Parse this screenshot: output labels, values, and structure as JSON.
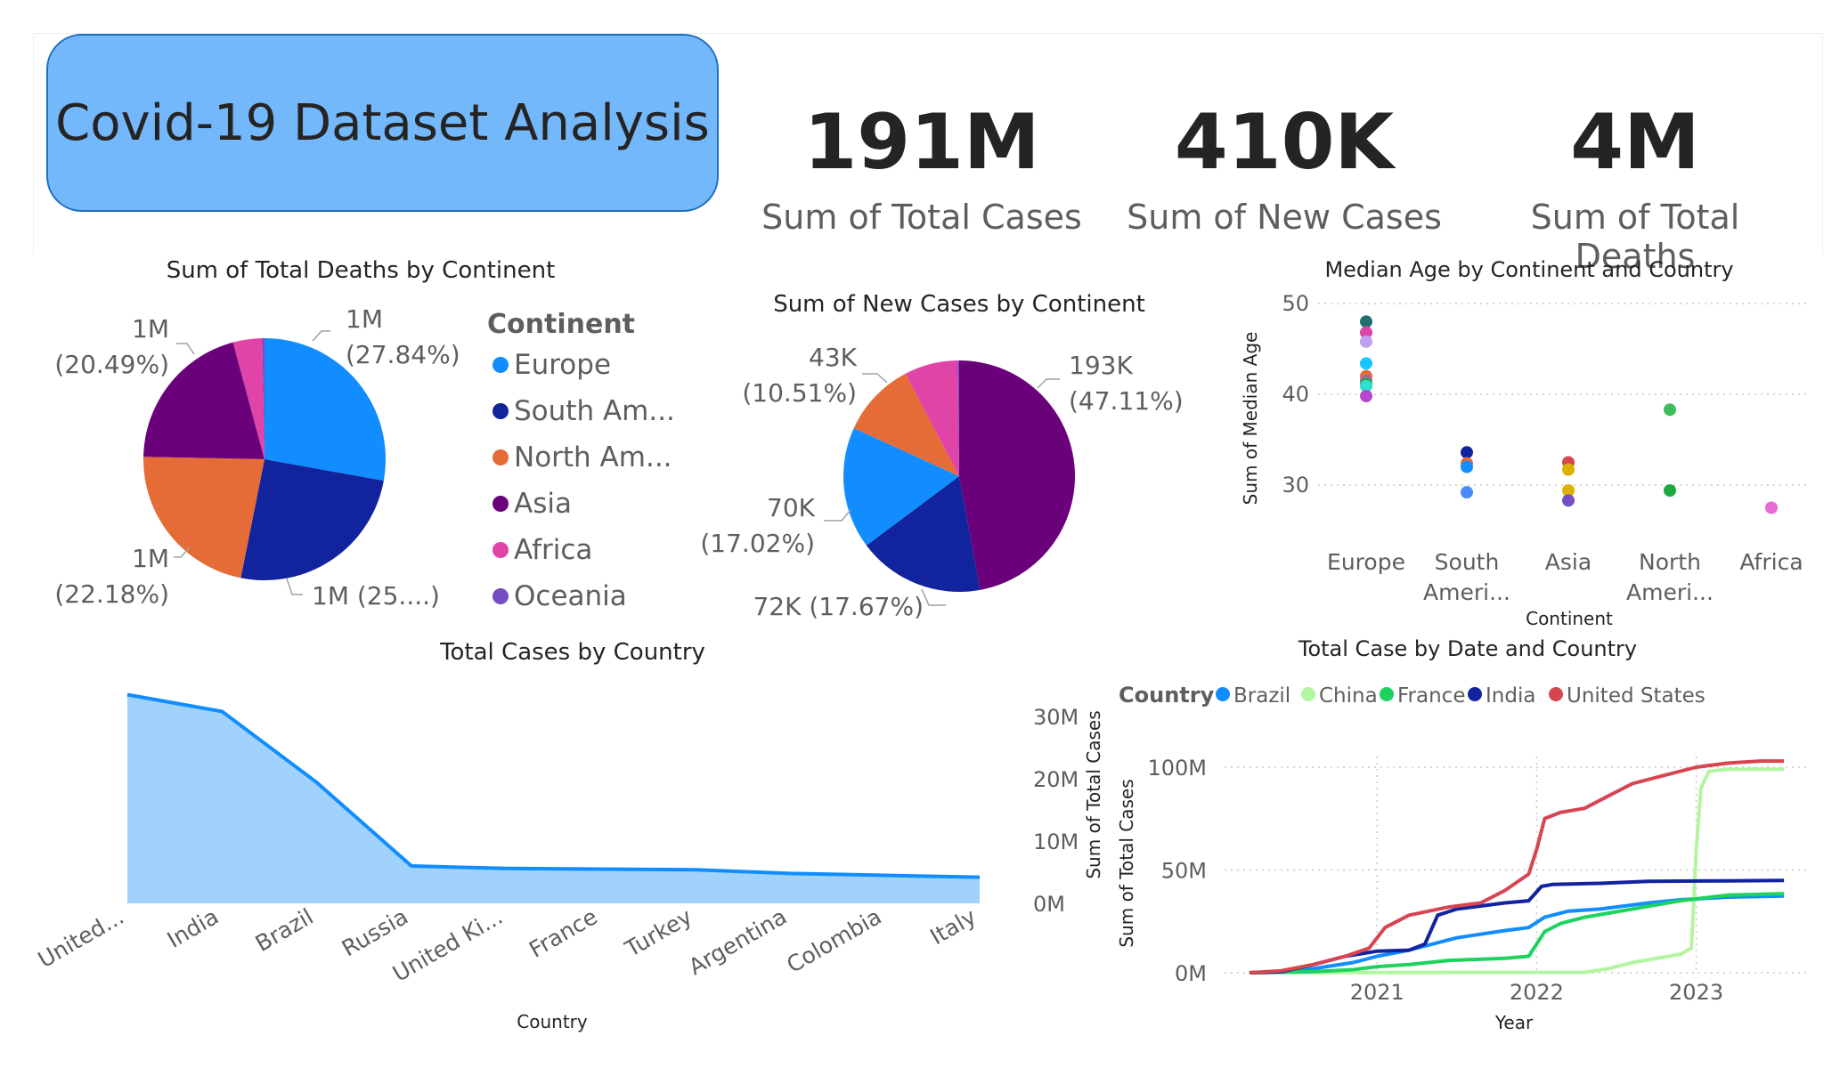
{
  "report_title": "Covid-19 Dataset Analysis",
  "kpis": [
    {
      "value": "191M",
      "label": "Sum of Total Cases"
    },
    {
      "value": "410K",
      "label": "Sum of New Cases"
    },
    {
      "value": "4M",
      "label": "Sum of Total Deaths"
    }
  ],
  "chart_data": [
    {
      "type": "pie",
      "title": "Sum of Total Deaths by Continent",
      "legend_title": "Continent",
      "legend": [
        "Europe",
        "South Am...",
        "North Am...",
        "Asia",
        "Africa",
        "Oceania"
      ],
      "slices": [
        {
          "name": "Europe",
          "pct": 27.84,
          "color": "#118dff",
          "label": [
            "1M",
            "(27.84%)"
          ]
        },
        {
          "name": "South America",
          "pct": 25.3,
          "color": "#12239e",
          "label": [
            "1M (25....)"
          ]
        },
        {
          "name": "North America",
          "pct": 22.18,
          "color": "#e66c37",
          "label": [
            "1M",
            "(22.18%)"
          ]
        },
        {
          "name": "Asia",
          "pct": 20.49,
          "color": "#6b007b",
          "label": [
            "1M",
            "(20.49%)"
          ]
        },
        {
          "name": "Africa",
          "pct": 3.89,
          "color": "#e044a7",
          "label": []
        },
        {
          "name": "Oceania",
          "pct": 0.3,
          "color": "#744ec2",
          "label": []
        }
      ]
    },
    {
      "type": "pie",
      "title": "Sum of New Cases by Continent",
      "slices": [
        {
          "name": "Asia",
          "pct": 47.11,
          "color": "#6b007b",
          "label": [
            "193K",
            "(47.11%)"
          ]
        },
        {
          "name": "South America",
          "pct": 17.67,
          "color": "#12239e",
          "label": [
            "72K (17.67%)"
          ]
        },
        {
          "name": "Europe",
          "pct": 17.02,
          "color": "#118dff",
          "label": [
            "70K",
            "(17.02%)"
          ]
        },
        {
          "name": "North America",
          "pct": 10.51,
          "color": "#e66c37",
          "label": [
            "43K",
            "(10.51%)"
          ]
        },
        {
          "name": "Africa",
          "pct": 7.49,
          "color": "#e044a7",
          "label": []
        },
        {
          "name": "Oceania",
          "pct": 0.2,
          "color": "#744ec2",
          "label": []
        }
      ]
    },
    {
      "type": "scatter",
      "title": "Median Age by Continent and Country",
      "xlabel": "Continent",
      "ylabel": "Sum of Median Age",
      "categories": [
        "Europe",
        "South Ameri...",
        "Asia",
        "North Ameri...",
        "Africa"
      ],
      "yticks": [
        50,
        40,
        30
      ],
      "ylim": [
        22,
        52
      ],
      "points": [
        {
          "cat": 0,
          "y": 48.0,
          "color": "#1f6f6f"
        },
        {
          "cat": 0,
          "y": 46.8,
          "color": "#e044a7"
        },
        {
          "cat": 0,
          "y": 45.8,
          "color": "#c0a0f0"
        },
        {
          "cat": 0,
          "y": 43.4,
          "color": "#16c6ff"
        },
        {
          "cat": 0,
          "y": 42.0,
          "color": "#e66c37"
        },
        {
          "cat": 0,
          "y": 41.5,
          "color": "#a66999"
        },
        {
          "cat": 0,
          "y": 41.1,
          "color": "#1aab40"
        },
        {
          "cat": 0,
          "y": 40.9,
          "color": "#2de0d0"
        },
        {
          "cat": 0,
          "y": 39.8,
          "color": "#b845d0"
        },
        {
          "cat": 1,
          "y": 33.6,
          "color": "#12239e"
        },
        {
          "cat": 1,
          "y": 32.4,
          "color": "#e66c37"
        },
        {
          "cat": 1,
          "y": 32.0,
          "color": "#118dff"
        },
        {
          "cat": 1,
          "y": 29.2,
          "color": "#4a8cf7"
        },
        {
          "cat": 2,
          "y": 32.5,
          "color": "#d64550"
        },
        {
          "cat": 2,
          "y": 31.7,
          "color": "#d9b300"
        },
        {
          "cat": 2,
          "y": 29.4,
          "color": "#d9b300"
        },
        {
          "cat": 2,
          "y": 28.3,
          "color": "#744ec2"
        },
        {
          "cat": 3,
          "y": 38.3,
          "color": "#3dbd5c"
        },
        {
          "cat": 3,
          "y": 29.4,
          "color": "#1aab40"
        },
        {
          "cat": 4,
          "y": 27.5,
          "color": "#ea6ad4"
        }
      ]
    },
    {
      "type": "area",
      "title": "Total Cases by Country",
      "xlabel": "Country",
      "ylabel": "Sum of Total Cases",
      "categories": [
        "United...",
        "India",
        "Brazil",
        "Russia",
        "United Ki...",
        "France",
        "Turkey",
        "Argentina",
        "Colombia",
        "Italy"
      ],
      "values": [
        33.5,
        30.8,
        19.4,
        6.0,
        5.6,
        5.5,
        5.4,
        4.8,
        4.5,
        4.2
      ],
      "yticks": [
        "30M",
        "20M",
        "10M",
        "0M"
      ],
      "ylim": [
        0,
        35
      ],
      "color": "#118dff"
    },
    {
      "type": "line",
      "title": "Total Case by Date and Country",
      "legend_title": "Country",
      "xlabel": "Year",
      "ylabel": "Sum of Total Cases",
      "xticks": [
        2021,
        2022,
        2023
      ],
      "xlim": [
        2020.1,
        2023.7
      ],
      "yticks": [
        "100M",
        "50M",
        "0M"
      ],
      "ylim": [
        0,
        110
      ],
      "series": [
        {
          "name": "Brazil",
          "color": "#118dff",
          "points": [
            [
              2020.2,
              0
            ],
            [
              2020.35,
              0.2
            ],
            [
              2020.6,
              2
            ],
            [
              2020.85,
              5
            ],
            [
              2021.0,
              8
            ],
            [
              2021.2,
              11
            ],
            [
              2021.5,
              17
            ],
            [
              2021.8,
              20.5
            ],
            [
              2021.95,
              22
            ],
            [
              2022.05,
              27
            ],
            [
              2022.2,
              30
            ],
            [
              2022.4,
              31
            ],
            [
              2022.7,
              34
            ],
            [
              2022.9,
              35.5
            ],
            [
              2023.2,
              36.8
            ],
            [
              2023.55,
              37.3
            ]
          ]
        },
        {
          "name": "China",
          "color": "#b3f5a0",
          "points": [
            [
              2020.2,
              0.1
            ],
            [
              2022.3,
              0.2
            ],
            [
              2022.45,
              2
            ],
            [
              2022.6,
              5
            ],
            [
              2022.9,
              9
            ],
            [
              2022.97,
              12
            ],
            [
              2023.0,
              60
            ],
            [
              2023.03,
              90
            ],
            [
              2023.08,
              98
            ],
            [
              2023.2,
              99
            ],
            [
              2023.55,
              99
            ]
          ]
        },
        {
          "name": "France",
          "color": "#1ed25e",
          "points": [
            [
              2020.2,
              0
            ],
            [
              2020.6,
              0.5
            ],
            [
              2020.85,
              1.5
            ],
            [
              2021.0,
              3
            ],
            [
              2021.2,
              4
            ],
            [
              2021.45,
              6
            ],
            [
              2021.8,
              7
            ],
            [
              2021.95,
              8
            ],
            [
              2022.0,
              14
            ],
            [
              2022.05,
              20
            ],
            [
              2022.15,
              24
            ],
            [
              2022.3,
              27
            ],
            [
              2022.6,
              31
            ],
            [
              2022.9,
              35
            ],
            [
              2023.2,
              37.8
            ],
            [
              2023.55,
              38.5
            ]
          ]
        },
        {
          "name": "India",
          "color": "#12239e",
          "points": [
            [
              2020.2,
              0
            ],
            [
              2020.4,
              0.5
            ],
            [
              2020.6,
              4
            ],
            [
              2020.8,
              8
            ],
            [
              2021.0,
              10.5
            ],
            [
              2021.2,
              11
            ],
            [
              2021.3,
              14
            ],
            [
              2021.38,
              28
            ],
            [
              2021.5,
              31
            ],
            [
              2021.8,
              34
            ],
            [
              2021.95,
              35
            ],
            [
              2022.03,
              42
            ],
            [
              2022.1,
              43
            ],
            [
              2022.4,
              43.5
            ],
            [
              2022.7,
              44.5
            ],
            [
              2023.2,
              44.7
            ],
            [
              2023.55,
              44.9
            ]
          ]
        },
        {
          "name": "United States",
          "color": "#d64550",
          "points": [
            [
              2020.2,
              0
            ],
            [
              2020.4,
              1
            ],
            [
              2020.6,
              4
            ],
            [
              2020.8,
              8
            ],
            [
              2020.95,
              12
            ],
            [
              2021.05,
              22
            ],
            [
              2021.2,
              28
            ],
            [
              2021.45,
              32
            ],
            [
              2021.65,
              34
            ],
            [
              2021.8,
              40
            ],
            [
              2021.95,
              48
            ],
            [
              2022.0,
              60
            ],
            [
              2022.05,
              75
            ],
            [
              2022.15,
              78
            ],
            [
              2022.3,
              80
            ],
            [
              2022.45,
              86
            ],
            [
              2022.6,
              92
            ],
            [
              2022.8,
              96
            ],
            [
              2023.0,
              100
            ],
            [
              2023.2,
              102
            ],
            [
              2023.4,
              103
            ],
            [
              2023.55,
              103
            ]
          ]
        }
      ]
    }
  ]
}
